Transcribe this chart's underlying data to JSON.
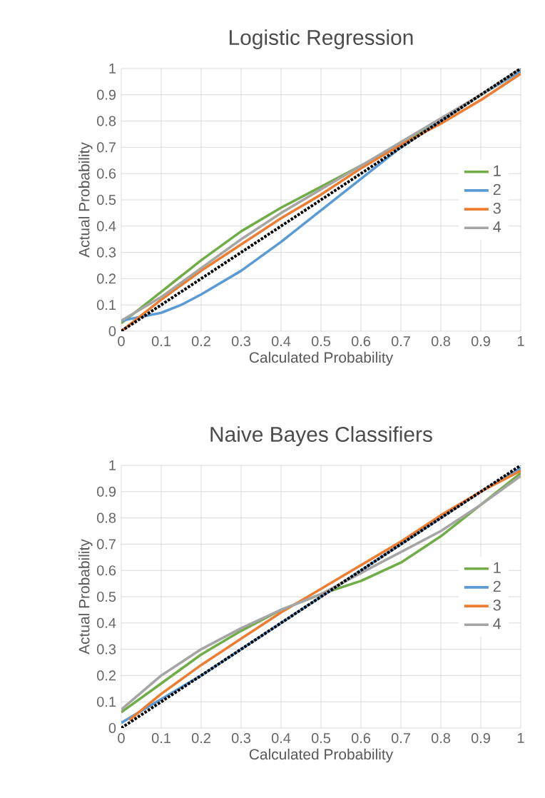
{
  "chart_data": [
    {
      "type": "line",
      "title": "Logistic Regression",
      "xlabel": "Calculated Probability",
      "ylabel": "Actual Probability",
      "xlim": [
        0,
        1
      ],
      "ylim": [
        0,
        1
      ],
      "xticks": [
        0,
        0.1,
        0.2,
        0.3,
        0.4,
        0.5,
        0.6,
        0.7,
        0.8,
        0.9,
        1
      ],
      "yticks": [
        0,
        0.1,
        0.2,
        0.3,
        0.4,
        0.5,
        0.6,
        0.7,
        0.8,
        0.9,
        1
      ],
      "grid": true,
      "legend": "right",
      "marker": "none",
      "series": [
        {
          "name": "1",
          "color": "#70ad47",
          "x": [
            0,
            0.1,
            0.2,
            0.3,
            0.4,
            0.5,
            0.6,
            0.7,
            0.8,
            0.9,
            1
          ],
          "values": [
            0.03,
            0.15,
            0.27,
            0.38,
            0.47,
            0.55,
            0.63,
            0.71,
            0.8,
            0.9,
            0.99
          ]
        },
        {
          "name": "2",
          "color": "#5b9bd5",
          "x": [
            0,
            0.1,
            0.15,
            0.2,
            0.3,
            0.4,
            0.5,
            0.6,
            0.7,
            0.8,
            0.9,
            1
          ],
          "values": [
            0.04,
            0.07,
            0.1,
            0.14,
            0.23,
            0.34,
            0.46,
            0.58,
            0.7,
            0.8,
            0.9,
            0.99
          ]
        },
        {
          "name": "3",
          "color": "#ed7d31",
          "x": [
            0,
            0.1,
            0.2,
            0.3,
            0.4,
            0.5,
            0.6,
            0.7,
            0.8,
            0.9,
            1
          ],
          "values": [
            0,
            0.12,
            0.23,
            0.33,
            0.43,
            0.52,
            0.62,
            0.71,
            0.79,
            0.88,
            0.98
          ]
        },
        {
          "name": "4",
          "color": "#a5a5a5",
          "x": [
            0,
            0.1,
            0.2,
            0.3,
            0.4,
            0.5,
            0.6,
            0.7,
            0.8,
            0.9,
            1
          ],
          "values": [
            0.04,
            0.13,
            0.24,
            0.35,
            0.45,
            0.54,
            0.63,
            0.72,
            0.81,
            0.9,
            1
          ]
        },
        {
          "color": "#000000",
          "line_style": "dotted",
          "x": [
            0,
            1
          ],
          "values": [
            0,
            1
          ]
        }
      ]
    },
    {
      "type": "line",
      "title": "Naive Bayes Classifiers",
      "xlabel": "Calculated Probability",
      "ylabel": "Actual Probability",
      "xlim": [
        0,
        1
      ],
      "ylim": [
        0,
        1
      ],
      "xticks": [
        0,
        0.1,
        0.2,
        0.3,
        0.4,
        0.5,
        0.6,
        0.7,
        0.8,
        0.9,
        1
      ],
      "yticks": [
        0,
        0.1,
        0.2,
        0.3,
        0.4,
        0.5,
        0.6,
        0.7,
        0.8,
        0.9,
        1
      ],
      "grid": true,
      "legend": "right",
      "marker": "none",
      "series": [
        {
          "name": "1",
          "color": "#70ad47",
          "x": [
            0,
            0.1,
            0.2,
            0.3,
            0.4,
            0.5,
            0.6,
            0.7,
            0.8,
            0.9,
            1
          ],
          "values": [
            0.06,
            0.17,
            0.28,
            0.37,
            0.45,
            0.51,
            0.56,
            0.63,
            0.73,
            0.85,
            0.97
          ]
        },
        {
          "name": "2",
          "color": "#5b9bd5",
          "x": [
            0,
            0.1,
            0.2,
            0.3,
            0.4,
            0.5,
            0.6,
            0.7,
            0.8,
            0.9,
            1
          ],
          "values": [
            0.02,
            0.11,
            0.2,
            0.3,
            0.4,
            0.5,
            0.6,
            0.7,
            0.8,
            0.9,
            0.99
          ]
        },
        {
          "name": "3",
          "color": "#ed7d31",
          "x": [
            0.02,
            0.1,
            0.2,
            0.3,
            0.4,
            0.5,
            0.6,
            0.7,
            0.8,
            0.9,
            1
          ],
          "values": [
            0.03,
            0.13,
            0.24,
            0.34,
            0.44,
            0.53,
            0.62,
            0.71,
            0.81,
            0.9,
            0.98
          ]
        },
        {
          "name": "4",
          "color": "#a5a5a5",
          "x": [
            0,
            0.1,
            0.2,
            0.3,
            0.4,
            0.5,
            0.6,
            0.7,
            0.8,
            0.9,
            1
          ],
          "values": [
            0.07,
            0.2,
            0.3,
            0.38,
            0.45,
            0.51,
            0.59,
            0.67,
            0.75,
            0.85,
            0.96
          ]
        },
        {
          "color": "#000000",
          "line_style": "dotted",
          "x": [
            0,
            1
          ],
          "values": [
            0,
            1
          ]
        }
      ]
    }
  ]
}
